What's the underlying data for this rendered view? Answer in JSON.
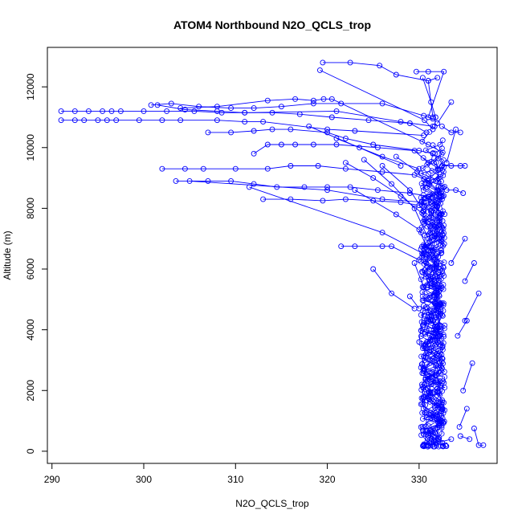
{
  "chart_data": {
    "type": "line",
    "title": "ATOM4 Northbound N2O_QCLS_trop",
    "xlabel": "N2O_QCLS_trop",
    "ylabel": "Altitude (m)",
    "xlim": [
      289.5,
      338.5
    ],
    "ylim": [
      -400,
      13300
    ],
    "xticks": [
      290,
      300,
      310,
      320,
      330
    ],
    "yticks": [
      0,
      2000,
      4000,
      6000,
      8000,
      10000,
      12000
    ],
    "grid": false,
    "legend": "none",
    "color": "#0000ff",
    "marker": "open-circle",
    "series": [
      {
        "values": [
          [
            319.5,
            12800
          ],
          [
            322.5,
            12800
          ],
          [
            325.7,
            12700
          ],
          [
            327.5,
            12400
          ],
          [
            331.0,
            12200
          ],
          [
            332.0,
            12300
          ]
        ]
      },
      {
        "values": [
          [
            319.2,
            12550
          ],
          [
            330.6,
            10900
          ],
          [
            331.5,
            10600
          ]
        ]
      },
      {
        "values": [
          [
            329.7,
            12500
          ],
          [
            331.0,
            12500
          ],
          [
            332.7,
            12500
          ],
          [
            331.0,
            11000
          ]
        ]
      },
      {
        "values": [
          [
            330.4,
            12300
          ],
          [
            331.3,
            11500
          ],
          [
            331.8,
            11000
          ],
          [
            331.7,
            10700
          ]
        ]
      },
      {
        "values": [
          [
            300.8,
            11400
          ],
          [
            303.0,
            11450
          ],
          [
            306.0,
            11350
          ],
          [
            309.5,
            11300
          ],
          [
            312.0,
            11300
          ],
          [
            315.0,
            11350
          ],
          [
            318.5,
            11450
          ],
          [
            321.5,
            11450
          ],
          [
            326.0,
            11450
          ],
          [
            330.5,
            11050
          ],
          [
            331.5,
            10950
          ]
        ]
      },
      {
        "values": [
          [
            301.5,
            11400
          ],
          [
            304.5,
            11250
          ],
          [
            308.0,
            11200
          ],
          [
            311.0,
            11150
          ],
          [
            314.0,
            11150
          ],
          [
            317.0,
            11100
          ],
          [
            320.5,
            11000
          ],
          [
            324.5,
            10900
          ],
          [
            329.0,
            10800
          ],
          [
            330.8,
            10500
          ]
        ]
      },
      {
        "values": [
          [
            304.0,
            11300
          ],
          [
            308.0,
            11350
          ],
          [
            313.5,
            11550
          ],
          [
            316.5,
            11600
          ],
          [
            318.5,
            11550
          ],
          [
            319.6,
            11600
          ],
          [
            320.5,
            11600
          ],
          [
            331.0,
            10100
          ]
        ]
      },
      {
        "values": [
          [
            291.0,
            11200
          ],
          [
            292.5,
            11200
          ],
          [
            294.0,
            11200
          ],
          [
            295.5,
            11200
          ],
          [
            296.5,
            11200
          ],
          [
            297.5,
            11200
          ],
          [
            300.0,
            11200
          ],
          [
            302.5,
            11200
          ],
          [
            305.5,
            11200
          ],
          [
            308.5,
            11150
          ],
          [
            311.0,
            11150
          ],
          [
            321.0,
            11200
          ],
          [
            328.0,
            10850
          ],
          [
            331.5,
            10700
          ]
        ]
      },
      {
        "values": [
          [
            291.0,
            10900
          ],
          [
            292.5,
            10900
          ],
          [
            293.5,
            10900
          ],
          [
            295.0,
            10900
          ],
          [
            296.0,
            10900
          ],
          [
            297.0,
            10900
          ],
          [
            299.5,
            10900
          ],
          [
            302.0,
            10900
          ],
          [
            304.0,
            10900
          ],
          [
            308.0,
            10900
          ],
          [
            311.0,
            10850
          ],
          [
            313.0,
            10850
          ],
          [
            320.0,
            10600
          ],
          [
            323.0,
            10550
          ],
          [
            330.5,
            10400
          ]
        ]
      },
      {
        "values": [
          [
            307.0,
            10500
          ],
          [
            309.5,
            10500
          ],
          [
            312.0,
            10550
          ],
          [
            314.0,
            10600
          ],
          [
            316.0,
            10600
          ],
          [
            320.0,
            10500
          ],
          [
            322.0,
            10300
          ],
          [
            325.0,
            10100
          ],
          [
            330.0,
            9900
          ],
          [
            331.5,
            9800
          ]
        ]
      },
      {
        "values": [
          [
            312.0,
            9800
          ],
          [
            313.5,
            10100
          ],
          [
            315.0,
            10100
          ],
          [
            316.5,
            10100
          ],
          [
            318.5,
            10100
          ],
          [
            321.0,
            10100
          ],
          [
            325.5,
            10000
          ],
          [
            329.5,
            9900
          ],
          [
            331.0,
            9500
          ]
        ]
      },
      {
        "values": [
          [
            302.0,
            9300
          ],
          [
            304.5,
            9300
          ],
          [
            306.5,
            9300
          ],
          [
            310.0,
            9300
          ],
          [
            313.5,
            9300
          ],
          [
            316.0,
            9400
          ],
          [
            319.0,
            9400
          ],
          [
            322.0,
            9300
          ],
          [
            326.0,
            9200
          ],
          [
            329.5,
            9100
          ],
          [
            331.0,
            8900
          ],
          [
            332.0,
            8600
          ]
        ]
      },
      {
        "values": [
          [
            303.5,
            8900
          ],
          [
            307.0,
            8900
          ],
          [
            309.5,
            8900
          ],
          [
            312.0,
            8800
          ],
          [
            314.5,
            8700
          ],
          [
            317.5,
            8700
          ],
          [
            320.0,
            8700
          ],
          [
            322.5,
            8700
          ],
          [
            325.5,
            8600
          ],
          [
            329.0,
            8500
          ],
          [
            331.0,
            8400
          ],
          [
            332.5,
            8300
          ]
        ]
      },
      {
        "values": [
          [
            305.0,
            8900
          ],
          [
            320.0,
            8600
          ],
          [
            326.0,
            8300
          ],
          [
            330.5,
            8200
          ]
        ]
      },
      {
        "values": [
          [
            313.0,
            8300
          ],
          [
            316.0,
            8300
          ],
          [
            319.5,
            8250
          ],
          [
            322.0,
            8300
          ],
          [
            325.0,
            8250
          ],
          [
            328.0,
            8200
          ],
          [
            330.0,
            8100
          ]
        ]
      },
      {
        "values": [
          [
            311.5,
            8700
          ],
          [
            326.0,
            7200
          ],
          [
            330.5,
            6500
          ]
        ]
      },
      {
        "values": [
          [
            321.5,
            6750
          ],
          [
            323.0,
            6750
          ],
          [
            326.0,
            6750
          ],
          [
            327.0,
            6750
          ],
          [
            330.0,
            6300
          ]
        ]
      },
      {
        "values": [
          [
            322.0,
            9500
          ],
          [
            325.0,
            9000
          ],
          [
            328.0,
            8400
          ],
          [
            330.5,
            7800
          ]
        ]
      },
      {
        "values": [
          [
            324.0,
            9600
          ],
          [
            327.0,
            8800
          ],
          [
            329.5,
            8000
          ],
          [
            331.0,
            7000
          ]
        ]
      },
      {
        "values": [
          [
            323.0,
            8600
          ],
          [
            327.5,
            7800
          ],
          [
            330.0,
            7300
          ],
          [
            331.0,
            6600
          ]
        ]
      },
      {
        "values": [
          [
            326.0,
            9400
          ],
          [
            329.0,
            8600
          ],
          [
            330.5,
            7900
          ]
        ]
      },
      {
        "values": [
          [
            327.5,
            9700
          ],
          [
            329.8,
            9200
          ],
          [
            331.0,
            8800
          ]
        ]
      },
      {
        "values": [
          [
            325.0,
            6000
          ],
          [
            327.0,
            5200
          ],
          [
            329.5,
            4700
          ]
        ]
      },
      {
        "values": [
          [
            321.0,
            10300
          ],
          [
            326.0,
            9700
          ],
          [
            330.0,
            9300
          ]
        ]
      },
      {
        "values": [
          [
            318.0,
            10700
          ],
          [
            323.5,
            10000
          ],
          [
            328.0,
            9400
          ]
        ]
      },
      {
        "values": [
          [
            332.5,
            10700
          ],
          [
            333.5,
            10500
          ],
          [
            334.5,
            10500
          ]
        ]
      },
      {
        "values": [
          [
            332.5,
            9400
          ],
          [
            333.5,
            9400
          ],
          [
            334.5,
            9400
          ],
          [
            335.0,
            9400
          ]
        ]
      },
      {
        "values": [
          [
            333.0,
            8600
          ],
          [
            334.0,
            8600
          ],
          [
            334.8,
            8500
          ]
        ]
      },
      {
        "values": [
          [
            333.5,
            11500
          ],
          [
            332.0,
            10800
          ]
        ]
      },
      {
        "values": [
          [
            334.0,
            10600
          ],
          [
            333.0,
            9500
          ]
        ]
      },
      {
        "values": [
          [
            335.0,
            7000
          ],
          [
            333.5,
            6200
          ]
        ]
      },
      {
        "values": [
          [
            336.0,
            6200
          ],
          [
            335.0,
            5600
          ]
        ]
      },
      {
        "values": [
          [
            336.5,
            5200
          ],
          [
            335.0,
            4300
          ]
        ]
      },
      {
        "values": [
          [
            335.2,
            4300
          ],
          [
            334.2,
            3800
          ]
        ]
      },
      {
        "values": [
          [
            335.8,
            2900
          ],
          [
            334.8,
            2000
          ]
        ]
      },
      {
        "values": [
          [
            335.2,
            1400
          ],
          [
            334.4,
            800
          ]
        ]
      },
      {
        "values": [
          [
            336.0,
            750
          ],
          [
            336.5,
            200
          ],
          [
            337.0,
            200
          ]
        ]
      },
      {
        "values": [
          [
            335.5,
            400
          ],
          [
            334.5,
            500
          ]
        ]
      },
      {
        "values": [
          [
            333.5,
            400
          ],
          [
            331.0,
            200
          ]
        ]
      },
      {
        "values": [
          [
            331.0,
            1800
          ],
          [
            332.0,
            1500
          ]
        ]
      },
      {
        "values": [
          [
            330.5,
            4800
          ],
          [
            330.0,
            3600
          ]
        ]
      },
      {
        "values": [
          [
            329.5,
            6200
          ],
          [
            330.5,
            5400
          ]
        ]
      },
      {
        "values": [
          [
            329.0,
            5100
          ],
          [
            330.0,
            4700
          ]
        ]
      },
      {
        "values": [
          [
            331.0,
            12200
          ],
          [
            331.5,
            11000
          ]
        ]
      }
    ],
    "dense_core": {
      "x_center": 331.5,
      "x_jitter": 1.3,
      "y_range": [
        150,
        10700
      ],
      "note": ""
    }
  }
}
